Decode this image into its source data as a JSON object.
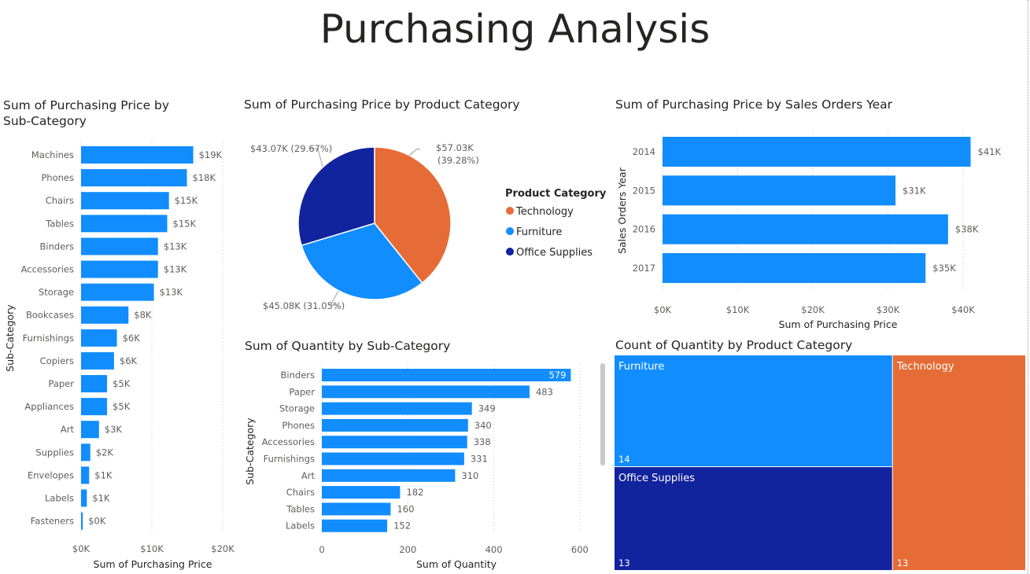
{
  "page": {
    "title": "Purchasing Analysis"
  },
  "colors": {
    "blue": "#118DFF",
    "navy": "#12239E",
    "orange": "#E66C37",
    "grid": "#c8c6c4"
  },
  "charts": {
    "subcat_price": {
      "title": "Sum of Purchasing Price by Sub-Category",
      "title_line1": "Sum of Purchasing Price by",
      "title_line2": "Sub-Category",
      "xlabel": "Sum of Purchasing Price",
      "ylabel": "Sub-Category",
      "ticks": [
        "$0K",
        "$10K",
        "$20K"
      ]
    },
    "category_pie": {
      "title": "Sum of Purchasing Price by Product Category",
      "legend_title": "Product Category"
    },
    "year_price": {
      "title": "Sum of Purchasing Price by Sales Orders Year",
      "xlabel": "Sum of Purchasing Price",
      "ylabel": "Sales Orders Year",
      "ticks": [
        "$0K",
        "$10K",
        "$20K",
        "$30K",
        "$40K"
      ]
    },
    "subcat_qty": {
      "title": "Sum of Quantity by Sub-Category",
      "xlabel": "Sum of Quantity",
      "ylabel": "Sub-Category",
      "ticks": [
        "0",
        "200",
        "400",
        "600"
      ]
    },
    "treemap": {
      "title": "Count of Quantity by Product Category"
    }
  },
  "chart_data": [
    {
      "type": "bar",
      "orientation": "horizontal",
      "title": "Sum of Purchasing Price by Sub-Category",
      "xlabel": "Sum of Purchasing Price",
      "ylabel": "Sub-Category",
      "xlim": [
        0,
        20000
      ],
      "categories": [
        "Machines",
        "Phones",
        "Chairs",
        "Tables",
        "Binders",
        "Accessories",
        "Storage",
        "Bookcases",
        "Furnishings",
        "Copiers",
        "Paper",
        "Appliances",
        "Art",
        "Supplies",
        "Envelopes",
        "Labels",
        "Fasteners"
      ],
      "values": [
        19400,
        18300,
        15200,
        14900,
        13300,
        13300,
        12600,
        8200,
        6200,
        5700,
        4500,
        4500,
        3100,
        1600,
        1400,
        1000,
        300
      ],
      "data_labels": [
        "$19K",
        "$18K",
        "$15K",
        "$15K",
        "$13K",
        "$13K",
        "$13K",
        "$8K",
        "$6K",
        "$6K",
        "$5K",
        "$5K",
        "$3K",
        "$2K",
        "$1K",
        "$1K",
        "$0K"
      ]
    },
    {
      "type": "pie",
      "title": "Sum of Purchasing Price by Product Category",
      "legend_title": "Product Category",
      "legend_position": "right",
      "slices": [
        {
          "name": "Technology",
          "value": 57030,
          "label1": "$57.03K",
          "label2": "(39.28%)",
          "color": "#E66C37"
        },
        {
          "name": "Furniture",
          "value": 45080,
          "label1": "$45.08K (31.05%)",
          "label2": "",
          "color": "#118DFF"
        },
        {
          "name": "Office Supplies",
          "value": 43070,
          "label1": "$43.07K (29.67%)",
          "label2": "",
          "color": "#12239E"
        }
      ]
    },
    {
      "type": "bar",
      "orientation": "horizontal",
      "title": "Sum of Purchasing Price by Sales Orders Year",
      "xlabel": "Sum of Purchasing Price",
      "ylabel": "Sales Orders Year",
      "xlim": [
        0,
        43000
      ],
      "categories": [
        "2014",
        "2015",
        "2016",
        "2017"
      ],
      "values": [
        41000,
        31000,
        38000,
        35000
      ],
      "data_labels": [
        "$41K",
        "$31K",
        "$38K",
        "$35K"
      ]
    },
    {
      "type": "bar",
      "orientation": "horizontal",
      "title": "Sum of Quantity by Sub-Category",
      "xlabel": "Sum of Quantity",
      "ylabel": "Sub-Category",
      "xlim": [
        0,
        600
      ],
      "categories": [
        "Binders",
        "Paper",
        "Storage",
        "Phones",
        "Accessories",
        "Furnishings",
        "Art",
        "Chairs",
        "Tables",
        "Labels"
      ],
      "values": [
        579,
        483,
        349,
        340,
        338,
        331,
        310,
        182,
        160,
        152
      ],
      "data_labels": [
        "579",
        "483",
        "349",
        "340",
        "338",
        "331",
        "310",
        "182",
        "160",
        "152"
      ]
    },
    {
      "type": "treemap",
      "title": "Count of Quantity by Product Category",
      "items": [
        {
          "name": "Furniture",
          "value": 14,
          "label": "14",
          "color": "#118DFF"
        },
        {
          "name": "Office Supplies",
          "value": 13,
          "label": "13",
          "color": "#12239E"
        },
        {
          "name": "Technology",
          "value": 13,
          "label": "13",
          "color": "#E66C37"
        }
      ]
    }
  ]
}
